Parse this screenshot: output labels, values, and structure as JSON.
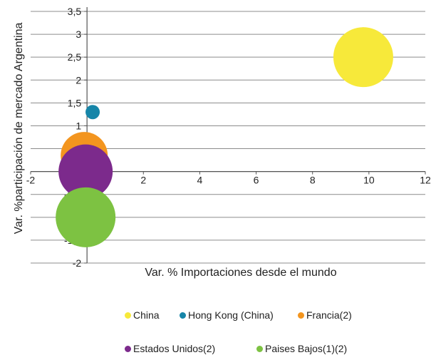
{
  "chart_data": {
    "type": "bubble",
    "xlabel": "Var. % Importaciones desde el mundo",
    "ylabel": "Var. %participación de mercado Argentina",
    "xlim": [
      -2,
      12
    ],
    "ylim": [
      -2,
      3.5
    ],
    "x_ticks": [
      {
        "v": -2,
        "label": "-2"
      },
      {
        "v": 0,
        "label": "0"
      },
      {
        "v": 2,
        "label": "2"
      },
      {
        "v": 4,
        "label": "4"
      },
      {
        "v": 6,
        "label": "6"
      },
      {
        "v": 8,
        "label": "8"
      },
      {
        "v": 10,
        "label": "10"
      },
      {
        "v": 12,
        "label": "12"
      }
    ],
    "y_ticks": [
      {
        "v": -2,
        "label": "-2"
      },
      {
        "v": -1.5,
        "label": "-1,5"
      },
      {
        "v": -1,
        "label": "-1"
      },
      {
        "v": -0.5,
        "label": "-0,5"
      },
      {
        "v": 0,
        "label": "0"
      },
      {
        "v": 0.5,
        "label": "0,5"
      },
      {
        "v": 1,
        "label": "1"
      },
      {
        "v": 1.5,
        "label": "1,5"
      },
      {
        "v": 2,
        "label": "2"
      },
      {
        "v": 2.5,
        "label": "2,5"
      },
      {
        "v": 3,
        "label": "3"
      },
      {
        "v": 3.5,
        "label": "3,5"
      }
    ],
    "grid": "horizontal",
    "legend_position": "bottom",
    "series": [
      {
        "name": "China",
        "color": "#f7e93a",
        "x": 9.8,
        "y": 2.5,
        "size": 42
      },
      {
        "name": "Hong Kong (China)",
        "color": "#1685a8",
        "x": 0.2,
        "y": 1.3,
        "size": 10
      },
      {
        "name": "Francia(2)",
        "color": "#f3951f",
        "x": -0.1,
        "y": 0.35,
        "size": 33
      },
      {
        "name": "Estados Unidos(2)",
        "color": "#7c2a8c",
        "x": -0.05,
        "y": 0.0,
        "size": 38
      },
      {
        "name": "Paises Bajos(1)(2)",
        "color": "#7dc242",
        "x": -0.05,
        "y": -1.0,
        "size": 42
      }
    ]
  }
}
